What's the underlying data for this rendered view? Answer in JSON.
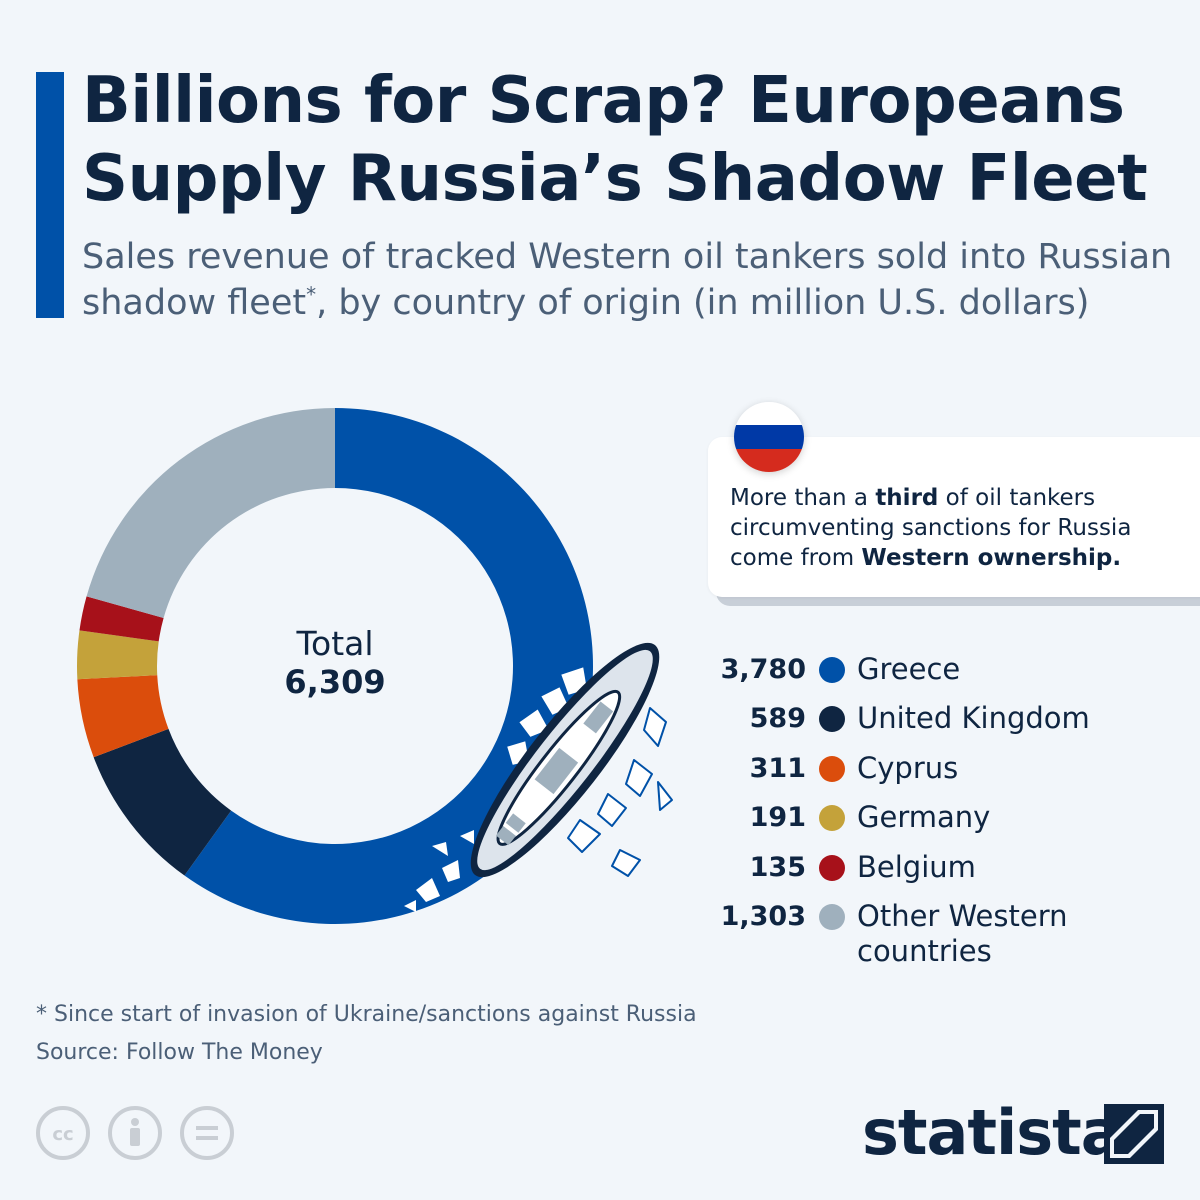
{
  "header": {
    "title": "Billions for Scrap? Europeans Supply Russia’s Shadow Fleet",
    "subtitle_before": "Sales revenue of tracked Western oil tankers sold into Russian shadow fleet",
    "subtitle_mark": "*",
    "subtitle_after": ", by country of origin (in million U.S. dollars)"
  },
  "center": {
    "label": "Total",
    "value": "6,309"
  },
  "info": {
    "t1": "More than a ",
    "b1": "third",
    "t2": " of oil tankers circumventing sanctions for Russia come from ",
    "b2": "Western ownership."
  },
  "flag_colors": [
    "#ffffff",
    "#0039a6",
    "#d52b1e"
  ],
  "chart_data": {
    "type": "pie",
    "donut": true,
    "total": 6309,
    "slices": [
      {
        "label": "Greece",
        "value": 3780,
        "display": "3,780",
        "color": "#0051a8"
      },
      {
        "label": "United Kingdom",
        "value": 589,
        "display": "589",
        "color": "#0f2541"
      },
      {
        "label": "Cyprus",
        "value": 311,
        "display": "311",
        "color": "#db4d0c"
      },
      {
        "label": "Germany",
        "value": 191,
        "display": "191",
        "color": "#c4a23a"
      },
      {
        "label": "Belgium",
        "value": 135,
        "display": "135",
        "color": "#a7111a"
      },
      {
        "label": "Other Western countries",
        "value": 1303,
        "display": "1,303",
        "color": "#9fb0bd"
      }
    ]
  },
  "footer": {
    "footnote": "* Since start of invasion of Ukraine/sanctions against Russia",
    "source": "Source: Follow The Money",
    "brand": "statista",
    "license_icons": [
      "cc-icon",
      "attribution-icon",
      "no-derivatives-icon"
    ]
  }
}
